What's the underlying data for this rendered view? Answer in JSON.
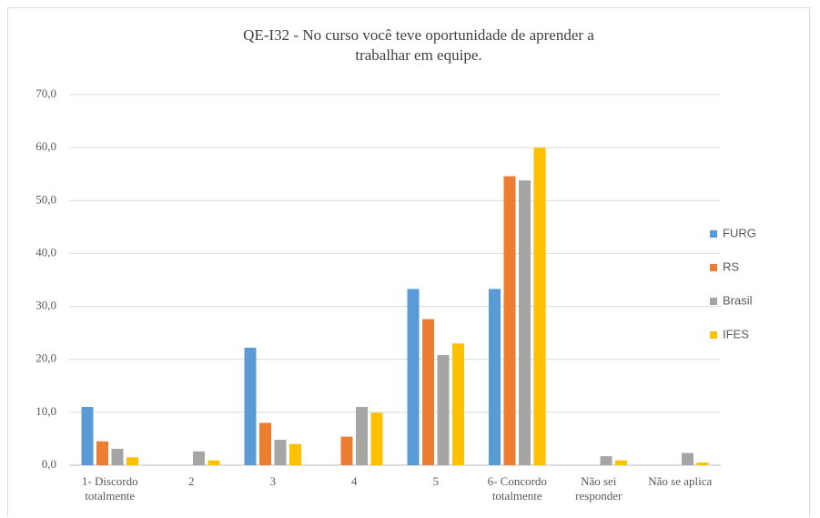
{
  "chart_data": {
    "type": "bar",
    "title": "QE-I32 - No curso você teve oportunidade de aprender a trabalhar em equipe.",
    "categories": [
      "1- Discordo totalmente",
      "2",
      "3",
      "4",
      "5",
      "6- Concordo totalmente",
      "Não sei responder",
      "Não se aplica"
    ],
    "series": [
      {
        "name": "FURG",
        "color": "#5b9bd5",
        "values": [
          11.0,
          0,
          22.2,
          0,
          33.3,
          33.3,
          0,
          0
        ]
      },
      {
        "name": "RS",
        "color": "#ed7d31",
        "values": [
          4.5,
          0,
          8.0,
          5.4,
          27.6,
          54.6,
          0,
          0
        ]
      },
      {
        "name": "Brasil",
        "color": "#a5a5a5",
        "values": [
          3.1,
          2.6,
          4.8,
          11.0,
          20.8,
          53.8,
          1.7,
          2.3
        ]
      },
      {
        "name": "IFES",
        "color": "#ffc000",
        "values": [
          1.5,
          0.9,
          4.0,
          9.9,
          23.0,
          60.0,
          0.9,
          0.5
        ]
      }
    ],
    "ylim": [
      0,
      70
    ],
    "yticks": [
      {
        "value": 0,
        "label": "0,0"
      },
      {
        "value": 10,
        "label": "10,0"
      },
      {
        "value": 20,
        "label": "20,0"
      },
      {
        "value": 30,
        "label": "30,0"
      },
      {
        "value": 40,
        "label": "40,0"
      },
      {
        "value": 50,
        "label": "50,0"
      },
      {
        "value": 60,
        "label": "60,0"
      },
      {
        "value": 70,
        "label": "70,0"
      }
    ],
    "grid": true,
    "legend": "right"
  }
}
